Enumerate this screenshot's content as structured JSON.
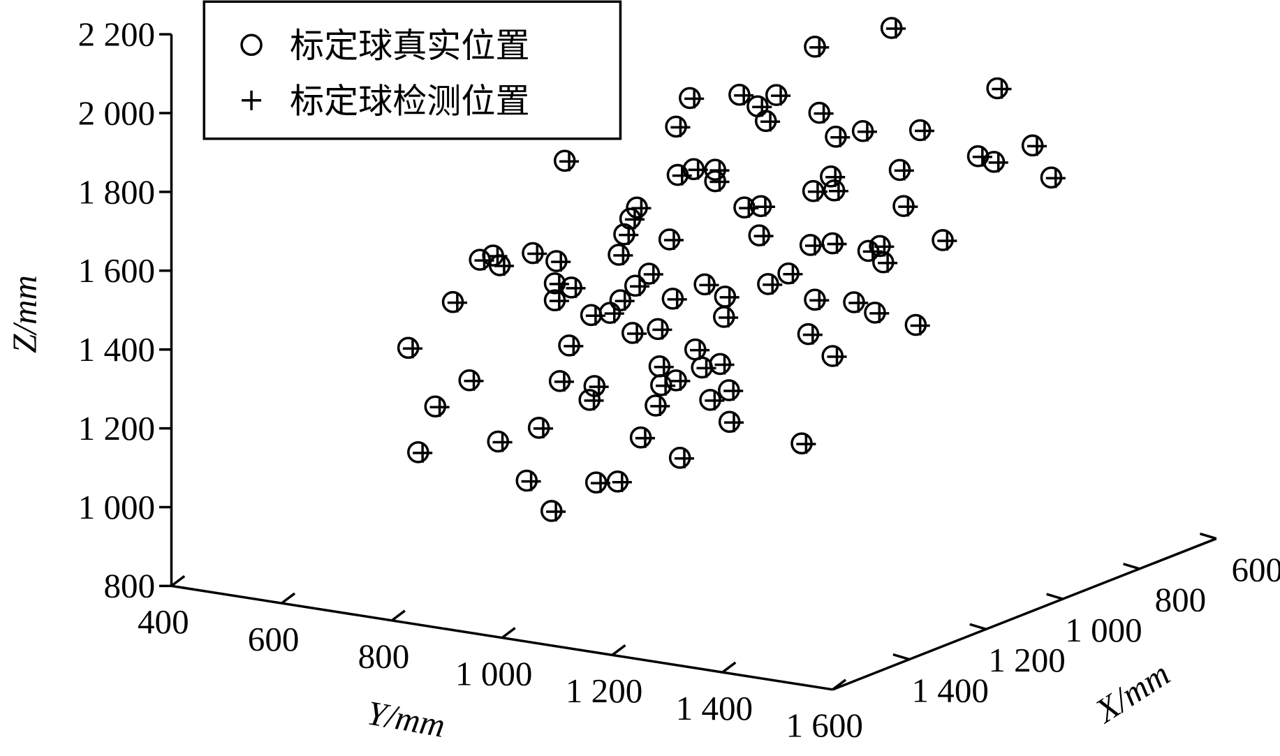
{
  "chart_data": {
    "type": "scatter3d",
    "xlabel": "X/mm",
    "ylabel": "Y/mm",
    "zlabel": "Z/mm",
    "xlim": [
      600,
      1600
    ],
    "ylim": [
      400,
      1600
    ],
    "zlim": [
      800,
      2200
    ],
    "xticks": [
      600,
      800,
      {
        "value": 1000,
        "label": "1 000"
      },
      {
        "value": 1200,
        "label": "1 200"
      },
      {
        "value": 1400,
        "label": "1 400"
      }
    ],
    "yticks": [
      400,
      600,
      800,
      {
        "value": 1000,
        "label": "1 000"
      },
      {
        "value": 1200,
        "label": "1 200"
      },
      {
        "value": 1400,
        "label": "1 400"
      },
      {
        "value": 1600,
        "label": "1 600"
      }
    ],
    "zticks": [
      800,
      {
        "value": 1000,
        "label": "1 000"
      },
      {
        "value": 1200,
        "label": "1 200"
      },
      {
        "value": 1400,
        "label": "1 400"
      },
      {
        "value": 1600,
        "label": "1 600"
      },
      {
        "value": 1800,
        "label": "1 800"
      },
      {
        "value": 2000,
        "label": "2 000"
      },
      {
        "value": 2200,
        "label": "2 200"
      }
    ],
    "legend": "upper left",
    "series": [
      {
        "name": "标定球真实位置",
        "marker": "circle",
        "color": "#000000",
        "x": [
          1000,
          1000,
          1000,
          1000,
          1000,
          1000,
          1000,
          1000,
          1000,
          1000,
          1000,
          1000,
          1000,
          1000,
          1000,
          1000,
          1000,
          1000,
          1000,
          1000,
          1000,
          1000,
          1000,
          1000,
          1000,
          1000,
          1000,
          1000,
          1000,
          1000,
          1000,
          1000,
          1000,
          1000,
          1000,
          1000,
          1000,
          1000,
          1000,
          1000,
          1000,
          1000,
          1000,
          1000,
          1000,
          1000,
          1000,
          1000,
          1000,
          1000,
          1000,
          1000,
          1000,
          1000,
          1000,
          1000,
          1000,
          1000,
          1000,
          1000,
          1000,
          1000,
          1000,
          1000,
          1000,
          1000,
          1000,
          1000,
          1000,
          1000,
          1000,
          1000,
          1000,
          1000,
          1000,
          1000,
          1000,
          1000,
          1000,
          1000,
          1000,
          1000,
          1000,
          1000,
          1000,
          1000,
          1000,
          1000,
          1000,
          1000,
          1000,
          1000,
          1000,
          1000,
          1000,
          1000
        ],
        "y": [
          412,
          430,
          461,
          493,
          523,
          542,
          566,
          578,
          575,
          627,
          638,
          649,
          672,
          681,
          678,
          678,
          687,
          696,
          704,
          708,
          741,
          744,
          750,
          753,
          778,
          792,
          794,
          797,
          804,
          815,
          819,
          824,
          827,
          834,
          849,
          861,
          865,
          868,
          871,
          886,
          892,
          898,
          898,
          901,
          905,
          923,
          930,
          933,
          945,
          950,
          960,
          969,
          969,
          978,
          985,
          987,
          994,
          995,
          1013,
          1022,
          1046,
          1049,
          1052,
          1061,
          1065,
          1080,
          1102,
          1126,
          1138,
          1142,
          1147,
          1150,
          1150,
          1158,
          1182,
          1182,
          1185,
          1179,
          1188,
          1221,
          1237,
          1247,
          1259,
          1268,
          1274,
          1289,
          1304,
          1311,
          1333,
          1341,
          1382,
          1446,
          1475,
          1481,
          1545,
          1579
        ],
        "z": [
          1177,
          916,
          1039,
          1311,
          1119,
          1429,
          1445,
          1423,
          975,
          887,
          1467,
          1026,
          820,
          1456,
          1399,
          1356,
          1153,
          1714,
          1247,
          1395,
          1117,
          1333,
          1154,
          910,
          1346,
          921,
          1497,
          1382,
          1551,
          1593,
          1304,
          1425,
          1624,
          1042,
          1461,
          1129,
          1324,
          1230,
          1183,
          1556,
          1407,
          1201,
          1845,
          1723,
          1006,
          1923,
          1744,
          1287,
          1244,
          1456,
          1165,
          1751,
          1722,
          1260,
          1381,
          1433,
          1197,
          1117,
          1951,
          1667,
          1929,
          1602,
          1677,
          1895,
          1482,
          1965,
          1517,
          1091,
          1371,
          1598,
          1736,
          1461,
          2103,
          1937,
          1325,
          1611,
          1746,
          1780,
          1883,
          1470,
          1908,
          1606,
          1452,
          1623,
          1583,
          2181,
          1824,
          1734,
          1437,
          1933,
          1663,
          1890,
          1882,
          2070,
          1939,
          1865
        ]
      },
      {
        "name": "标定球检测位置",
        "marker": "plus",
        "color": "#000000",
        "x": [
          1000,
          1000,
          1000,
          1000,
          1000,
          1000,
          1000,
          1000,
          1000,
          1000,
          1000,
          1000,
          1000,
          1000,
          1000,
          1000,
          1000,
          1000,
          1000,
          1000,
          1000,
          1000,
          1000,
          1000,
          1000,
          1000,
          1000,
          1000,
          1000,
          1000,
          1000,
          1000,
          1000,
          1000,
          1000,
          1000,
          1000,
          1000,
          1000,
          1000,
          1000,
          1000,
          1000,
          1000,
          1000,
          1000,
          1000,
          1000,
          1000,
          1000,
          1000,
          1000,
          1000,
          1000,
          1000,
          1000,
          1000,
          1000,
          1000,
          1000,
          1000,
          1000,
          1000,
          1000,
          1000,
          1000,
          1000,
          1000,
          1000,
          1000,
          1000,
          1000,
          1000,
          1000,
          1000,
          1000,
          1000,
          1000,
          1000,
          1000,
          1000,
          1000,
          1000,
          1000,
          1000,
          1000,
          1000,
          1000,
          1000,
          1000,
          1000,
          1000,
          1000,
          1000,
          1000,
          1000
        ],
        "y": [
          420,
          438,
          469,
          501,
          531,
          550,
          574,
          586,
          583,
          635,
          646,
          657,
          680,
          689,
          686,
          686,
          695,
          704,
          712,
          716,
          749,
          752,
          758,
          761,
          786,
          800,
          802,
          805,
          812,
          823,
          827,
          832,
          835,
          842,
          857,
          869,
          873,
          876,
          879,
          894,
          900,
          906,
          906,
          909,
          913,
          931,
          938,
          941,
          953,
          958,
          968,
          977,
          977,
          986,
          993,
          995,
          1002,
          1003,
          1021,
          1030,
          1054,
          1057,
          1060,
          1069,
          1073,
          1088,
          1110,
          1134,
          1146,
          1150,
          1155,
          1158,
          1158,
          1166,
          1190,
          1190,
          1193,
          1187,
          1196,
          1229,
          1245,
          1255,
          1267,
          1276,
          1282,
          1297,
          1312,
          1319,
          1341,
          1349,
          1390,
          1454,
          1483,
          1489,
          1553,
          1587
        ],
        "z": [
          1177,
          916,
          1039,
          1311,
          1119,
          1429,
          1445,
          1423,
          975,
          887,
          1467,
          1026,
          820,
          1456,
          1399,
          1356,
          1153,
          1714,
          1247,
          1395,
          1117,
          1333,
          1154,
          910,
          1346,
          921,
          1497,
          1382,
          1551,
          1593,
          1304,
          1425,
          1624,
          1042,
          1461,
          1129,
          1324,
          1230,
          1183,
          1556,
          1407,
          1201,
          1845,
          1723,
          1006,
          1923,
          1744,
          1287,
          1244,
          1456,
          1165,
          1751,
          1722,
          1260,
          1381,
          1433,
          1197,
          1117,
          1951,
          1667,
          1929,
          1602,
          1677,
          1895,
          1482,
          1965,
          1517,
          1091,
          1371,
          1598,
          1736,
          1461,
          2103,
          1937,
          1325,
          1611,
          1746,
          1780,
          1883,
          1470,
          1908,
          1606,
          1452,
          1623,
          1583,
          2181,
          1824,
          1734,
          1437,
          1933,
          1663,
          1890,
          1882,
          2070,
          1939,
          1865
        ]
      }
    ]
  }
}
